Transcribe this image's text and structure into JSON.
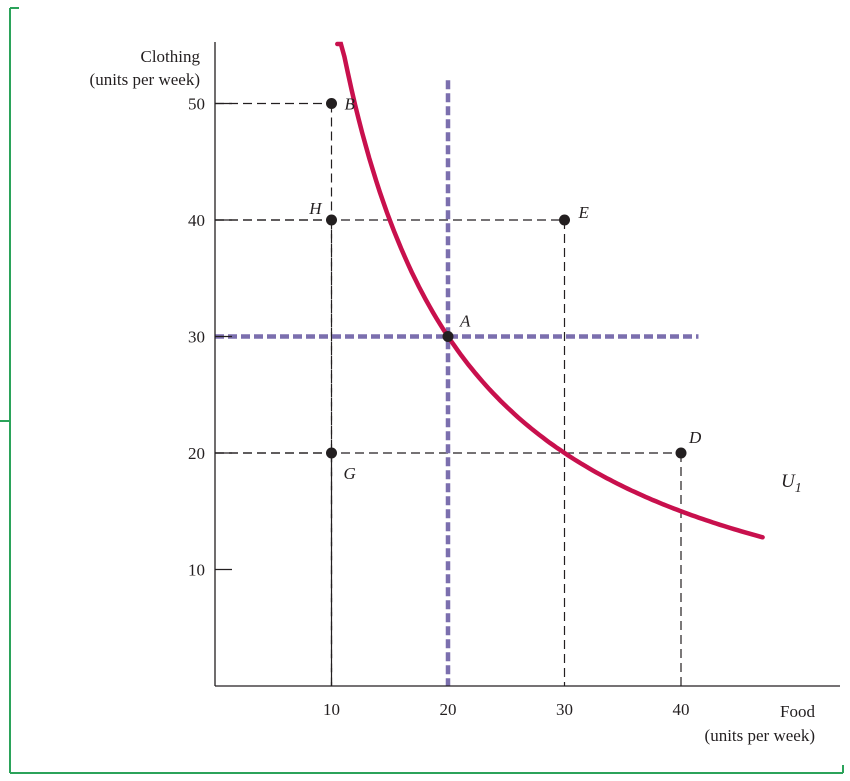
{
  "chart_data": {
    "type": "line",
    "ylabel": "Clothing",
    "ylabel_units": "(units per week)",
    "xlabel": "Food",
    "xlabel_units": "(units per week)",
    "xlim": [
      0,
      48
    ],
    "ylim": [
      0,
      56
    ],
    "x_ticks": [
      10,
      20,
      30,
      40
    ],
    "y_ticks": [
      10,
      20,
      30,
      40,
      50
    ],
    "curve": {
      "label": "U",
      "subscript": "1",
      "utility_product": 600,
      "x_range": [
        10.5,
        47
      ],
      "color": "#c8104d"
    },
    "reference_lines": {
      "color": "#7b6fae",
      "vertical_x": 20,
      "vertical_y_range": [
        0,
        52
      ],
      "horizontal_y": 30,
      "horizontal_x_range": [
        0,
        41.5
      ]
    },
    "points": [
      {
        "label": "B",
        "x": 10,
        "y": 50,
        "label_side": "right"
      },
      {
        "label": "H",
        "x": 10,
        "y": 40,
        "label_side": "left"
      },
      {
        "label": "E",
        "x": 30,
        "y": 40,
        "label_side": "right"
      },
      {
        "label": "A",
        "x": 20,
        "y": 30,
        "label_side": "right"
      },
      {
        "label": "D",
        "x": 40,
        "y": 20,
        "label_side": "above"
      },
      {
        "label": "G",
        "x": 10,
        "y": 20,
        "label_side": "below-right"
      }
    ],
    "frame_color": "#2ba35a"
  }
}
